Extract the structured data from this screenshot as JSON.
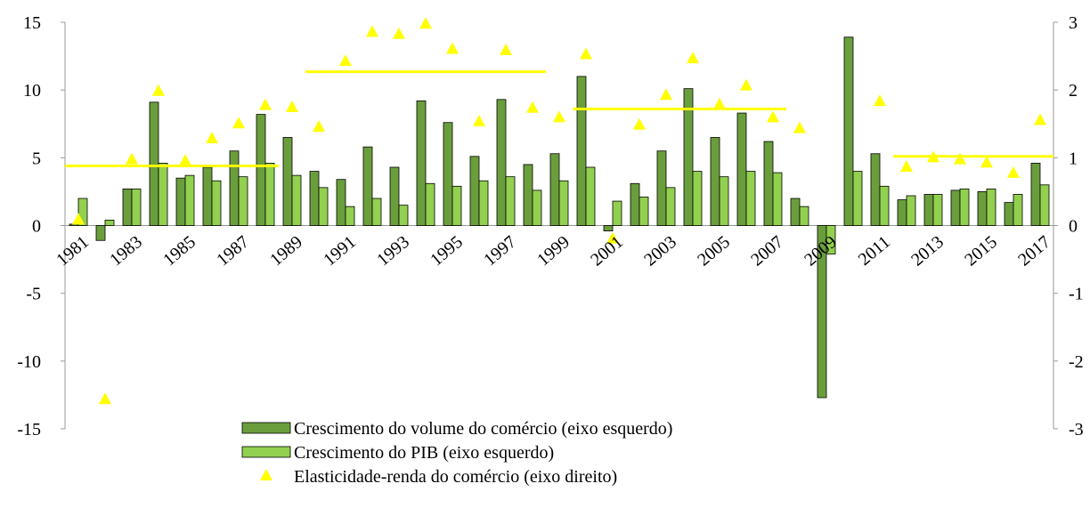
{
  "chart_data": {
    "type": "bar",
    "categories": [
      "1981",
      null,
      "1983",
      null,
      "1985",
      null,
      "1987",
      null,
      "1989",
      null,
      "1991",
      null,
      "1993",
      null,
      "1995",
      null,
      "1997",
      null,
      "1999",
      null,
      "2001",
      null,
      "2003",
      null,
      "2005",
      null,
      "2007",
      null,
      "2009",
      null,
      "2011",
      null,
      "2013",
      null,
      "2015",
      null,
      "2017"
    ],
    "series": [
      {
        "name": "Crescimento do volume do comércio (eixo esquerdo)",
        "color": "#6a9e3c",
        "values": [
          0.1,
          -1.1,
          2.7,
          9.1,
          3.5,
          4.3,
          5.5,
          8.2,
          6.5,
          4.0,
          3.4,
          5.8,
          4.3,
          9.2,
          7.6,
          5.1,
          9.3,
          4.5,
          5.3,
          11.0,
          -0.4,
          3.1,
          5.5,
          10.1,
          6.5,
          8.3,
          6.2,
          2.0,
          -12.7,
          13.9,
          5.3,
          1.9,
          2.3,
          2.6,
          2.5,
          1.7,
          4.6
        ]
      },
      {
        "name": "Crescimento do PIB (eixo esquerdo)",
        "color": "#92d050",
        "values": [
          2.0,
          0.4,
          2.7,
          4.6,
          3.7,
          3.3,
          3.6,
          4.6,
          3.7,
          2.8,
          1.4,
          2.0,
          1.5,
          3.1,
          2.9,
          3.3,
          3.6,
          2.6,
          3.3,
          4.3,
          1.8,
          2.1,
          2.8,
          4.0,
          3.6,
          4.0,
          3.9,
          1.4,
          -2.1,
          4.0,
          2.9,
          2.2,
          2.3,
          2.7,
          2.7,
          2.3,
          3.0
        ]
      },
      {
        "name": "Elasticidade-renda do comércio (eixo direito)",
        "color": "#ffff00",
        "type": "scatter",
        "axis": "y2",
        "values": [
          0.08,
          -2.57,
          0.97,
          1.98,
          0.95,
          1.28,
          1.5,
          1.77,
          1.74,
          1.45,
          2.42,
          2.85,
          2.82,
          2.97,
          2.6,
          1.53,
          2.58,
          1.73,
          1.59,
          2.52,
          -0.2,
          1.48,
          1.92,
          2.46,
          1.78,
          2.06,
          1.59,
          1.43,
          null,
          null,
          1.83,
          0.86,
          1.0,
          0.97,
          0.92,
          0.77,
          1.55
        ]
      }
    ],
    "reference_lines": {
      "color": "#ffff00",
      "axis": "y2",
      "lines": [
        {
          "start": 0,
          "end": 7,
          "value": 0.88
        },
        {
          "start": 9,
          "end": 17,
          "value": 2.27
        },
        {
          "start": 19,
          "end": 26,
          "value": 1.72
        },
        {
          "start": 31,
          "end": 36,
          "value": 1.02
        }
      ]
    },
    "ylim": [
      -15,
      15
    ],
    "yticks": [
      -15,
      -10,
      -5,
      0,
      5,
      10,
      15
    ],
    "y2lim": [
      -3,
      3
    ],
    "y2ticks": [
      -3,
      -2,
      -1,
      0,
      1,
      2,
      3
    ]
  }
}
